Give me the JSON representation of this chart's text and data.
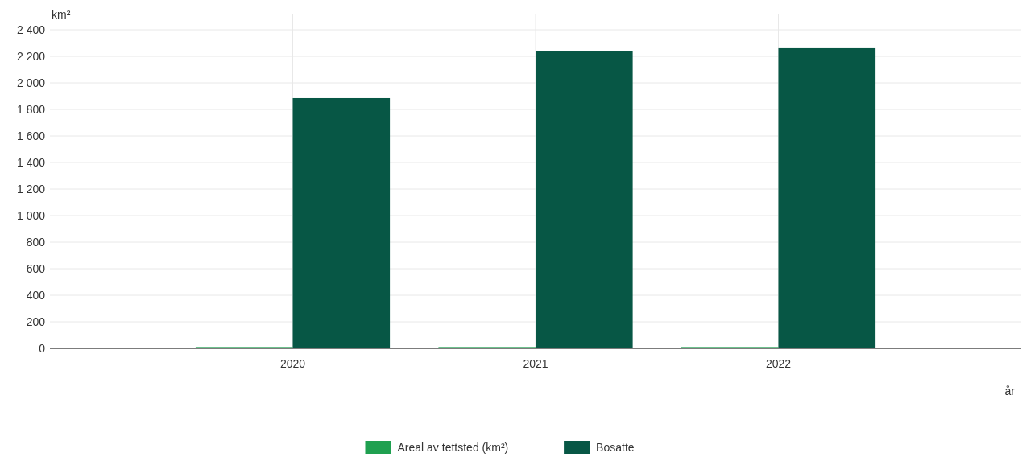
{
  "chart_data": {
    "type": "bar",
    "categories": [
      "2020",
      "2021",
      "2022"
    ],
    "series": [
      {
        "name": "Areal av tettsted (km²)",
        "color": "#1fa050",
        "values": [
          10,
          10,
          10
        ]
      },
      {
        "name": "Bosatte",
        "color": "#075745",
        "values": [
          1885,
          2242,
          2261
        ]
      }
    ],
    "ylabel": "km²",
    "xlabel": "år",
    "ylim": [
      0,
      2400
    ],
    "yticks": [
      {
        "value": 0,
        "label": "0"
      },
      {
        "value": 200,
        "label": "200"
      },
      {
        "value": 400,
        "label": "400"
      },
      {
        "value": 600,
        "label": "600"
      },
      {
        "value": 800,
        "label": "800"
      },
      {
        "value": 1000,
        "label": "1 000"
      },
      {
        "value": 1200,
        "label": "1 200"
      },
      {
        "value": 1400,
        "label": "1 400"
      },
      {
        "value": 1600,
        "label": "1 600"
      },
      {
        "value": 1800,
        "label": "1 800"
      },
      {
        "value": 2000,
        "label": "2 000"
      },
      {
        "value": 2200,
        "label": "2 200"
      },
      {
        "value": 2400,
        "label": "2 400"
      }
    ],
    "grid": true,
    "legend": "bottom"
  }
}
